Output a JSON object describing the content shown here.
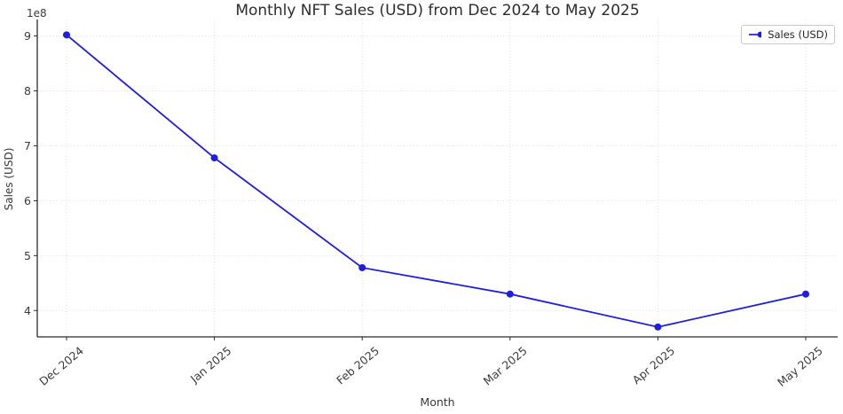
{
  "chart_data": {
    "type": "line",
    "title": "Monthly NFT Sales (USD) from Dec 2024 to May 2025",
    "xlabel": "Month",
    "ylabel": "Sales (USD)",
    "y_offset_label": "1e8",
    "categories": [
      "Dec 2024",
      "Jan 2025",
      "Feb 2025",
      "Mar 2025",
      "Apr 2025",
      "May 2025"
    ],
    "series": [
      {
        "name": "Sales (USD)",
        "color": "#1E1EDC",
        "marker": "circle",
        "values": [
          902000000,
          678000000,
          478000000,
          430000000,
          370000000,
          430000000
        ]
      }
    ],
    "y_ticks": {
      "values": [
        400000000,
        500000000,
        600000000,
        700000000,
        800000000,
        900000000
      ],
      "labels": [
        "4",
        "5",
        "6",
        "7",
        "8",
        "9"
      ]
    },
    "ylim": [
      352000000,
      930000000
    ],
    "grid": true,
    "grid_style": "dotted",
    "legend": {
      "position": "upper-right",
      "entries": [
        "Sales (USD)"
      ]
    },
    "colors": {
      "grid": "#dcdcdc",
      "spine": "#2b2b2b",
      "text": "#3a3a3a",
      "title": "#2c2c2c"
    }
  }
}
